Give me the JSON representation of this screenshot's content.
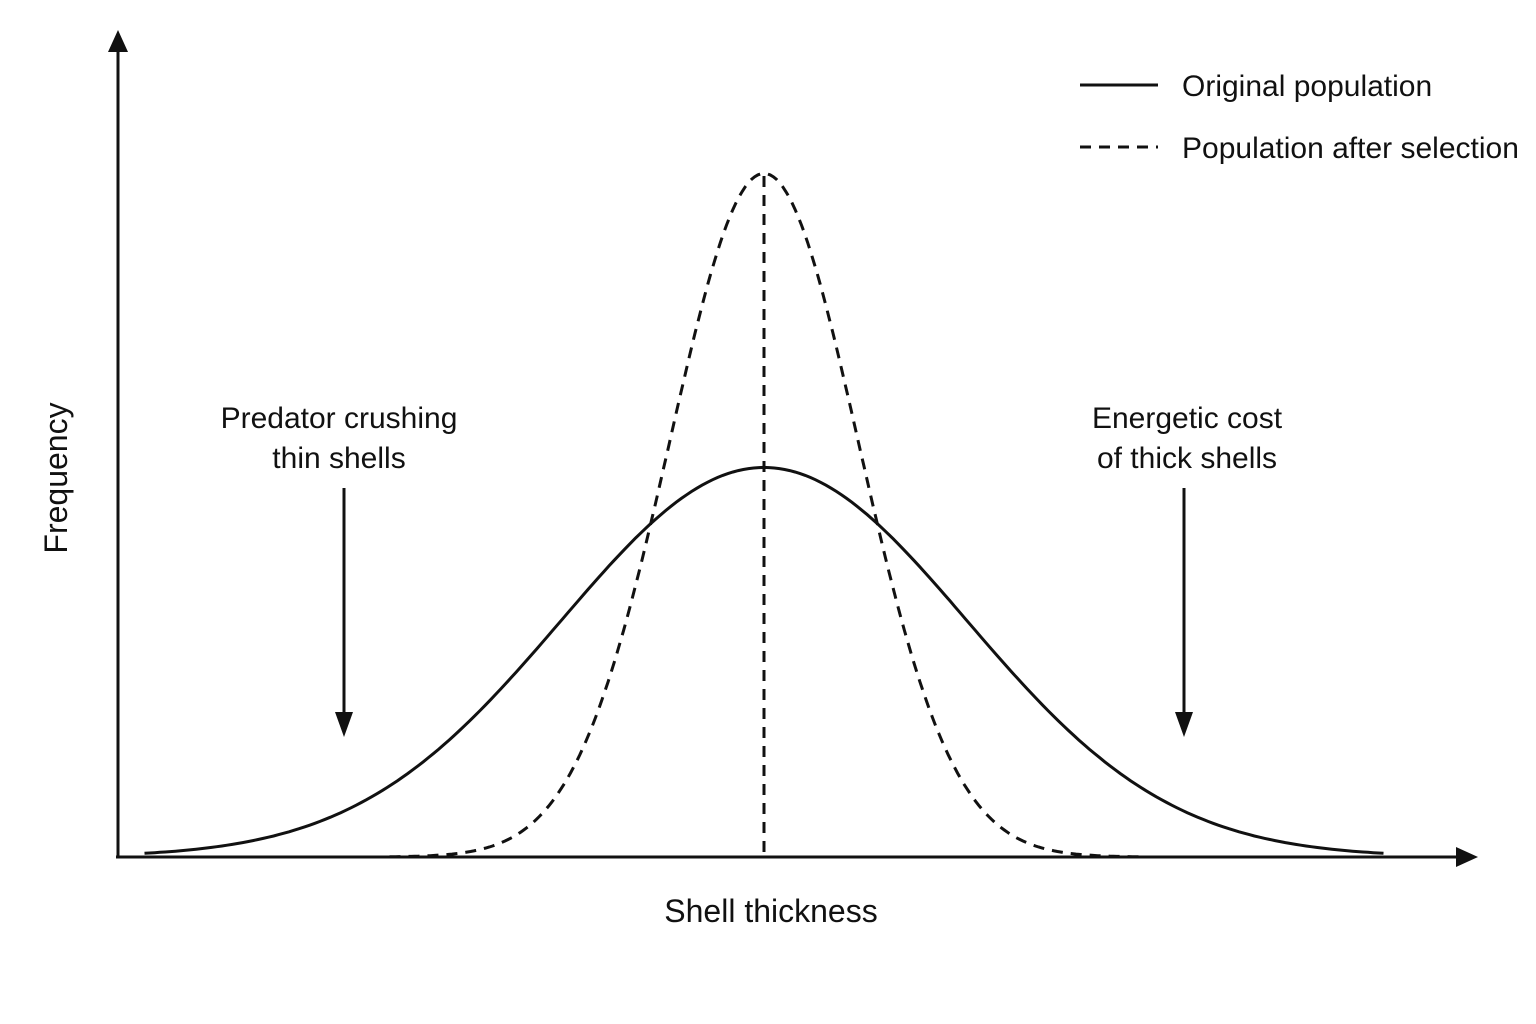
{
  "chart_data": {
    "type": "line",
    "title": "",
    "xlabel": "Shell thickness",
    "ylabel": "Frequency",
    "grid": false,
    "ticks": false,
    "legend_position": "top-right",
    "line_color": "#111111",
    "series": [
      {
        "name": "Original population",
        "style": "solid",
        "x_range": [
          -1.77,
          1.77
        ],
        "peak": 0.53,
        "spread": 0.58
      },
      {
        "name": "Population after selection",
        "style": "dashed",
        "x_range": [
          -1.07,
          1.07
        ],
        "peak": 0.93,
        "spread": 0.27
      }
    ],
    "mean_marker": {
      "x": 0,
      "style": "dashed"
    },
    "annotations": [
      {
        "id": "left",
        "lines": [
          "Predator crushing",
          "thin shells"
        ],
        "arrow_x": -1.2
      },
      {
        "id": "right",
        "lines": [
          "Energetic cost",
          "of thick shells"
        ],
        "arrow_x": 1.2
      }
    ]
  }
}
